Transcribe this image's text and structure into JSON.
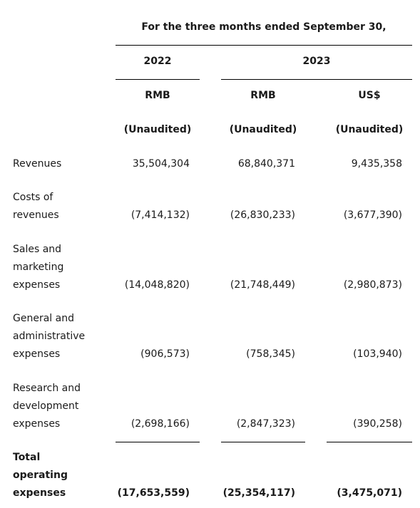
{
  "header": {
    "period": "For the three months ended September 30,",
    "years": [
      "2022",
      "2023"
    ],
    "currencies": [
      "RMB",
      "RMB",
      "US$"
    ],
    "audit_status": [
      "(Unaudited)",
      "(Unaudited)",
      "(Unaudited)"
    ]
  },
  "rows": [
    {
      "label_lines": [
        "Revenues"
      ],
      "values": [
        "35,504,304",
        "68,840,371",
        "9,435,358"
      ]
    },
    {
      "label_lines": [
        "Costs of",
        "revenues"
      ],
      "values": [
        "(7,414,132)",
        "(26,830,233)",
        "(3,677,390)"
      ]
    },
    {
      "label_lines": [
        "Sales and",
        "marketing",
        "expenses"
      ],
      "values": [
        "(14,048,820)",
        "(21,748,449)",
        "(2,980,873)"
      ]
    },
    {
      "label_lines": [
        "General and",
        "administrative",
        "expenses"
      ],
      "values": [
        "(906,573)",
        "(758,345)",
        "(103,940)"
      ]
    },
    {
      "label_lines": [
        "Research and",
        "development",
        "expenses"
      ],
      "values": [
        "(2,698,166)",
        "(2,847,323)",
        "(390,258)"
      ]
    },
    {
      "label_lines": [
        "Total",
        "operating",
        "expenses"
      ],
      "values": [
        "(17,653,559)",
        "(25,354,117)",
        "(3,475,071)"
      ]
    }
  ]
}
